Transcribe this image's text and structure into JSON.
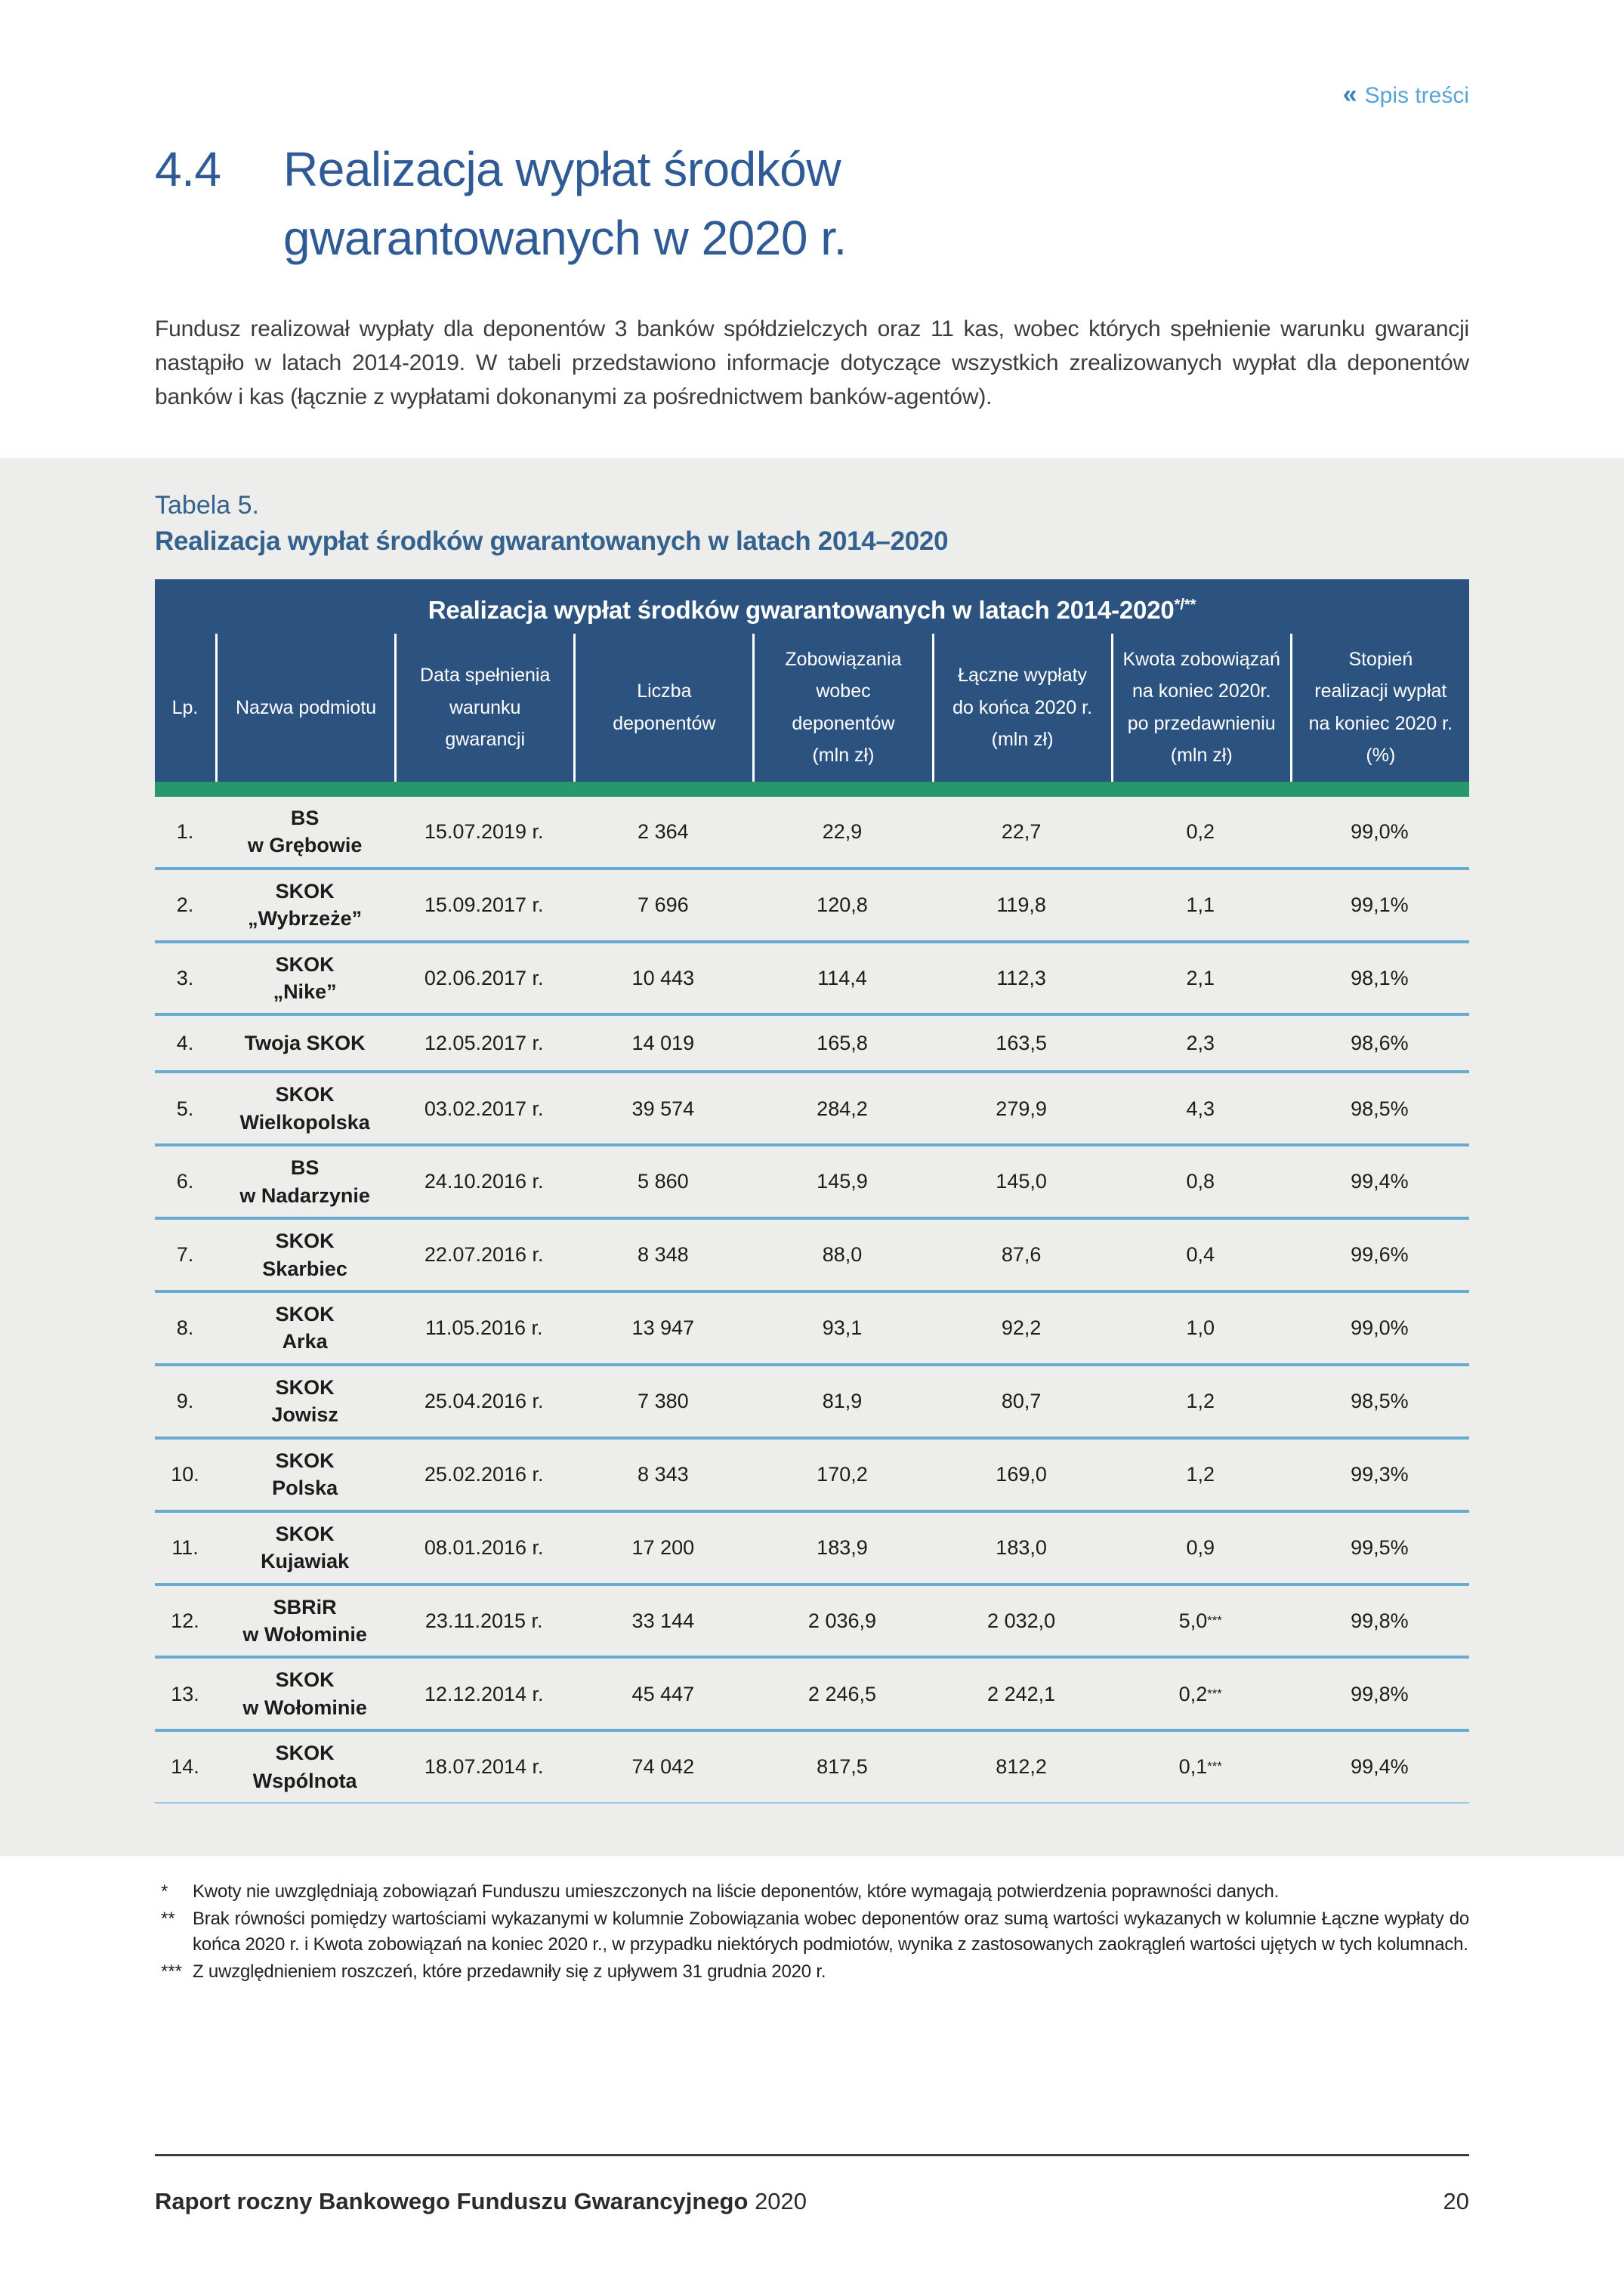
{
  "toc": {
    "icon": "«",
    "label": "Spis treści"
  },
  "heading": {
    "number": "4.4",
    "line1": "Realizacja wypłat środków",
    "line2": "gwarantowanych w 2020 r."
  },
  "intro": "Fundusz realizował wypłaty dla deponentów 3 banków spółdzielczych oraz 11 kas, wobec których spełnienie warunku gwarancji nastąpiło w latach 2014-2019. W tabeli przedstawiono informacje dotyczące wszystkich zrealizowanych wypłat dla deponentów banków i kas (łącznie z wypłatami dokonanymi za pośrednictwem banków-agentów).",
  "table": {
    "label": "Tabela 5.",
    "caption": "Realizacja wypłat środków gwarantowanych w latach 2014–2020",
    "header_title": "Realizacja wypłat środków gwarantowanych w latach 2014-2020",
    "header_title_sup": "*/**",
    "columns": [
      "Lp.",
      "Nazwa podmiotu",
      "Data spełnienia\nwarunku\ngwarancji",
      "Liczba\ndeponentów",
      "Zobowiązania\nwobec\ndeponentów\n(mln zł)",
      "Łączne wypłaty\ndo końca 2020 r.\n(mln zł)",
      "Kwota zobowiązań\nna koniec 2020r.\npo przedawnieniu\n(mln zł)",
      "Stopień\nrealizacji wypłat\nna koniec 2020 r.\n(%)"
    ],
    "rows": [
      {
        "lp": "1.",
        "name": "BS\nw Grębowie",
        "date": "15.07.2019 r.",
        "deponents": "2 364",
        "liabilities": "22,9",
        "payouts": "22,7",
        "remaining": "0,2",
        "remaining_sup": "",
        "ratio": "99,0%"
      },
      {
        "lp": "2.",
        "name": "SKOK\n„Wybrzeże”",
        "date": "15.09.2017 r.",
        "deponents": "7 696",
        "liabilities": "120,8",
        "payouts": "119,8",
        "remaining": "1,1",
        "remaining_sup": "",
        "ratio": "99,1%"
      },
      {
        "lp": "3.",
        "name": "SKOK\n„Nike”",
        "date": "02.06.2017 r.",
        "deponents": "10 443",
        "liabilities": "114,4",
        "payouts": "112,3",
        "remaining": "2,1",
        "remaining_sup": "",
        "ratio": "98,1%"
      },
      {
        "lp": "4.",
        "name": "Twoja SKOK",
        "date": "12.05.2017 r.",
        "deponents": "14 019",
        "liabilities": "165,8",
        "payouts": "163,5",
        "remaining": "2,3",
        "remaining_sup": "",
        "ratio": "98,6%"
      },
      {
        "lp": "5.",
        "name": "SKOK\nWielkopolska",
        "date": "03.02.2017 r.",
        "deponents": "39 574",
        "liabilities": "284,2",
        "payouts": "279,9",
        "remaining": "4,3",
        "remaining_sup": "",
        "ratio": "98,5%"
      },
      {
        "lp": "6.",
        "name": "BS\nw Nadarzynie",
        "date": "24.10.2016 r.",
        "deponents": "5 860",
        "liabilities": "145,9",
        "payouts": "145,0",
        "remaining": "0,8",
        "remaining_sup": "",
        "ratio": "99,4%"
      },
      {
        "lp": "7.",
        "name": "SKOK\nSkarbiec",
        "date": "22.07.2016 r.",
        "deponents": "8 348",
        "liabilities": "88,0",
        "payouts": "87,6",
        "remaining": "0,4",
        "remaining_sup": "",
        "ratio": "99,6%"
      },
      {
        "lp": "8.",
        "name": "SKOK\nArka",
        "date": "11.05.2016 r.",
        "deponents": "13 947",
        "liabilities": "93,1",
        "payouts": "92,2",
        "remaining": "1,0",
        "remaining_sup": "",
        "ratio": "99,0%"
      },
      {
        "lp": "9.",
        "name": "SKOK\nJowisz",
        "date": "25.04.2016 r.",
        "deponents": "7 380",
        "liabilities": "81,9",
        "payouts": "80,7",
        "remaining": "1,2",
        "remaining_sup": "",
        "ratio": "98,5%"
      },
      {
        "lp": "10.",
        "name": "SKOK\nPolska",
        "date": "25.02.2016 r.",
        "deponents": "8 343",
        "liabilities": "170,2",
        "payouts": "169,0",
        "remaining": "1,2",
        "remaining_sup": "",
        "ratio": "99,3%"
      },
      {
        "lp": "11.",
        "name": "SKOK\nKujawiak",
        "date": "08.01.2016 r.",
        "deponents": "17 200",
        "liabilities": "183,9",
        "payouts": "183,0",
        "remaining": "0,9",
        "remaining_sup": "",
        "ratio": "99,5%"
      },
      {
        "lp": "12.",
        "name": "SBRiR\nw Wołominie",
        "date": "23.11.2015 r.",
        "deponents": "33 144",
        "liabilities": "2 036,9",
        "payouts": "2 032,0",
        "remaining": "5,0",
        "remaining_sup": "***",
        "ratio": "99,8%"
      },
      {
        "lp": "13.",
        "name": "SKOK\nw Wołominie",
        "date": "12.12.2014 r.",
        "deponents": "45 447",
        "liabilities": "2 246,5",
        "payouts": "2 242,1",
        "remaining": "0,2",
        "remaining_sup": "***",
        "ratio": "99,8%"
      },
      {
        "lp": "14.",
        "name": "SKOK\nWspólnota",
        "date": "18.07.2014 r.",
        "deponents": "74 042",
        "liabilities": "817,5",
        "payouts": "812,2",
        "remaining": "0,1",
        "remaining_sup": "***",
        "ratio": "99,4%"
      }
    ]
  },
  "footnotes": [
    {
      "marker": "*",
      "text": "Kwoty nie uwzględniają zobowiązań Funduszu umieszczonych na liście deponentów, które wymagają potwierdzenia poprawności danych."
    },
    {
      "marker": "**",
      "text": "Brak równości pomiędzy wartościami wykazanymi w kolumnie Zobowiązania wobec deponentów oraz sumą wartości wykazanych w kolumnie Łączne wypłaty do końca 2020 r. i Kwota zobowiązań na koniec 2020 r., w przypadku niektórych podmiotów, wynika z zastosowanych zaokrągleń wartości ujętych w tych kolumnach."
    },
    {
      "marker": "***",
      "text": "Z uwzględnieniem roszczeń, które przedawniły się z upływem 31 grudnia 2020 r."
    }
  ],
  "footer": {
    "report_bold": "Raport roczny Bankowego Funduszu Gwarancyjnego",
    "report_year": "2020",
    "page_number": "20"
  },
  "colors": {
    "header_blue": "#2c5380",
    "accent_green": "#27986b",
    "row_separator_blue": "#69abce",
    "heading_blue": "#2e5a96",
    "link_blue": "#57a5d6",
    "band_gray": "#edeeec"
  }
}
